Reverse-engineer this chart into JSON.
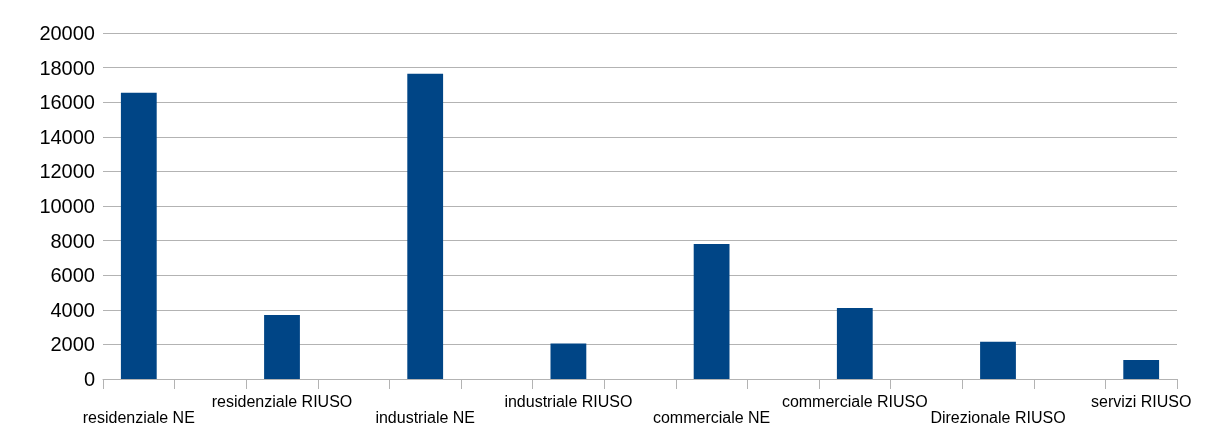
{
  "chart_data": {
    "type": "bar",
    "categories": [
      "residenziale NE",
      null,
      "residenziale RIUSO",
      null,
      "industriale NE",
      null,
      "industriale RIUSO",
      null,
      "commerciale NE",
      null,
      "commerciale RIUSO",
      null,
      "Direzionale RIUSO",
      null,
      "servizi RIUSO"
    ],
    "values": [
      16550,
      null,
      3700,
      null,
      17650,
      null,
      2050,
      null,
      7800,
      null,
      4100,
      null,
      2150,
      null,
      1100
    ],
    "color": "#004586",
    "ylim": [
      0,
      20000
    ],
    "yticks": [
      0,
      2000,
      4000,
      6000,
      8000,
      10000,
      12000,
      14000,
      16000,
      18000,
      20000
    ],
    "grid": "y"
  }
}
